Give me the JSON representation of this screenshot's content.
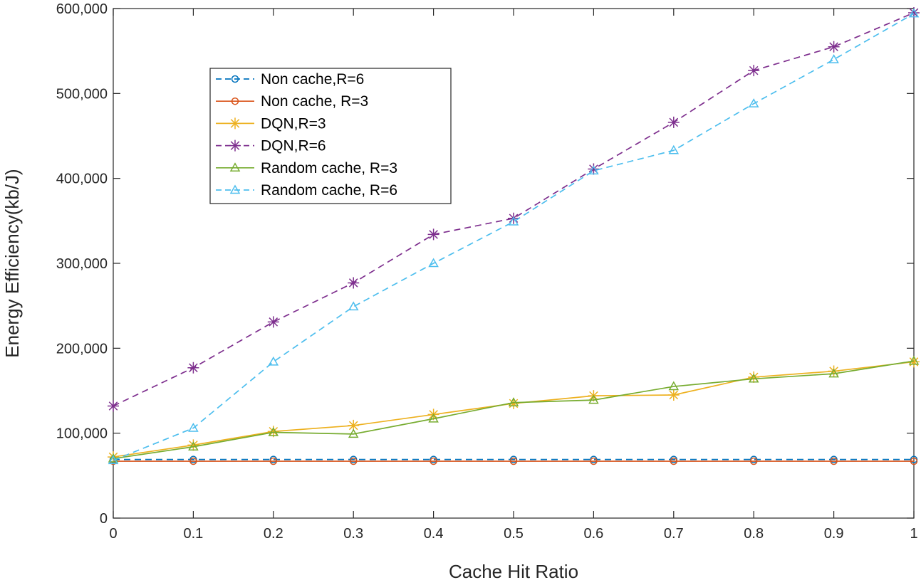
{
  "chart_data": {
    "type": "line",
    "title": "",
    "xlabel": "Cache Hit Ratio",
    "ylabel": "Energy Efficiency(kb/J)",
    "xlim": [
      0,
      1
    ],
    "ylim": [
      0,
      600000
    ],
    "x": [
      0,
      0.1,
      0.2,
      0.3,
      0.4,
      0.5,
      0.6,
      0.7,
      0.8,
      0.9,
      1
    ],
    "x_tick_labels": [
      "0",
      "0.1",
      "0.2",
      "0.3",
      "0.4",
      "0.5",
      "0.6",
      "0.7",
      "0.8",
      "0.9",
      "1"
    ],
    "y_ticks": [
      0,
      100000,
      200000,
      300000,
      400000,
      500000,
      600000
    ],
    "y_tick_labels": [
      "0",
      "100,000",
      "200,000",
      "300,000",
      "400,000",
      "500,000",
      "600,000"
    ],
    "grid": false,
    "legend_position": "upper-left",
    "series": [
      {
        "name": "Non cache,R=6",
        "color": "#0072BD",
        "dash": "dashed",
        "marker": "circle",
        "values": [
          69000,
          69000,
          69000,
          69000,
          69000,
          69000,
          69000,
          69000,
          69000,
          69000,
          69000
        ]
      },
      {
        "name": "Non cache, R=3",
        "color": "#D95319",
        "dash": "solid",
        "marker": "circle",
        "values": [
          67000,
          67000,
          67000,
          67000,
          67000,
          67000,
          67000,
          67000,
          67000,
          67000,
          67000
        ]
      },
      {
        "name": "DQN,R=3",
        "color": "#EDB120",
        "dash": "solid",
        "marker": "asterisk",
        "values": [
          72000,
          86000,
          102000,
          109000,
          122000,
          135000,
          144000,
          145000,
          166000,
          173000,
          184000
        ]
      },
      {
        "name": "DQN,R=6",
        "color": "#7E2F8E",
        "dash": "dashed",
        "marker": "asterisk",
        "values": [
          132000,
          177000,
          231000,
          277000,
          334000,
          353000,
          411000,
          466000,
          527000,
          555000,
          595000
        ]
      },
      {
        "name": "Random cache, R=3",
        "color": "#77AC30",
        "dash": "solid",
        "marker": "triangle",
        "values": [
          70000,
          84000,
          101000,
          99000,
          117000,
          136000,
          139000,
          155000,
          164000,
          170000,
          185000
        ]
      },
      {
        "name": "Random cache, R=6",
        "color": "#4DBEEE",
        "dash": "dashed",
        "marker": "triangle",
        "values": [
          68000,
          106000,
          184000,
          249000,
          300000,
          349000,
          409000,
          433000,
          488000,
          540000,
          594000
        ]
      }
    ]
  }
}
